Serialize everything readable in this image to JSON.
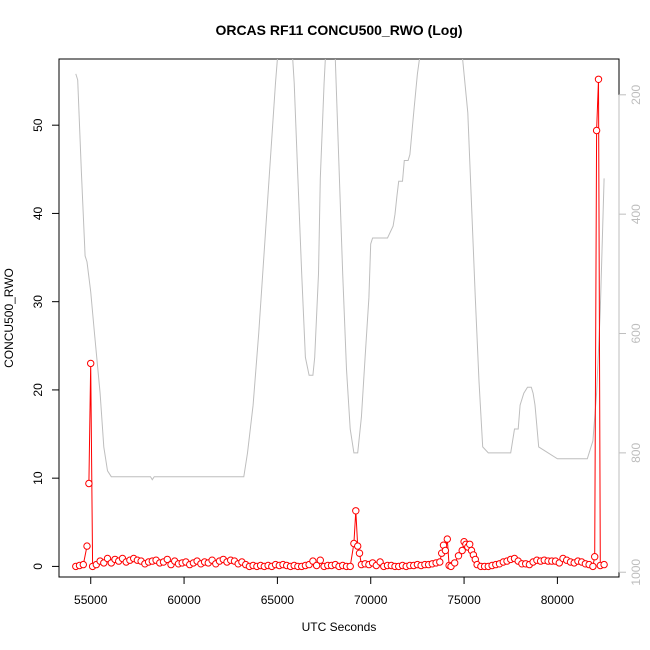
{
  "chart_data": {
    "type": "line",
    "title": "ORCAS RF11 CONCU500_RWO (Log)",
    "xlabel": "UTC Seconds",
    "ylabel": "CONCU500_RWO",
    "xlim": [
      53300,
      83300
    ],
    "ylim": [
      -1.2,
      57.5
    ],
    "x_ticks": [
      55000,
      60000,
      65000,
      70000,
      75000,
      80000
    ],
    "y_ticks": [
      0,
      10,
      20,
      30,
      40,
      50
    ],
    "y2_ticks": [
      200,
      400,
      600,
      800,
      1000
    ],
    "y2lim": [
      1008,
      140
    ],
    "colors": {
      "concentration": "#ff0000",
      "pressure": "#bebebe"
    },
    "series": [
      {
        "role": "concentration",
        "markers": "open-circle",
        "x": [
          54200,
          54400,
          54600,
          54800,
          54900,
          55000,
          55100,
          55300,
          55500,
          55700,
          55900,
          56100,
          56300,
          56500,
          56700,
          56900,
          57100,
          57300,
          57500,
          57700,
          57900,
          58100,
          58300,
          58500,
          58700,
          58900,
          59100,
          59300,
          59500,
          59700,
          59900,
          60100,
          60300,
          60500,
          60700,
          60900,
          61100,
          61300,
          61500,
          61700,
          61900,
          62100,
          62300,
          62500,
          62700,
          62900,
          63100,
          63300,
          63500,
          63700,
          63900,
          64100,
          64300,
          64500,
          64700,
          64900,
          65100,
          65300,
          65500,
          65700,
          65900,
          66100,
          66300,
          66500,
          66700,
          66900,
          67100,
          67300,
          67500,
          67700,
          67900,
          68100,
          68300,
          68500,
          68700,
          68900,
          69100,
          69200,
          69300,
          69400,
          69500,
          69700,
          69900,
          70100,
          70300,
          70500,
          70700,
          70900,
          71100,
          71300,
          71500,
          71700,
          71900,
          72100,
          72300,
          72500,
          72700,
          72900,
          73100,
          73300,
          73500,
          73700,
          73800,
          73900,
          74000,
          74100,
          74200,
          74300,
          74500,
          74700,
          74900,
          75000,
          75100,
          75200,
          75300,
          75400,
          75500,
          75600,
          75700,
          75900,
          76100,
          76300,
          76500,
          76700,
          76900,
          77100,
          77300,
          77500,
          77700,
          77900,
          78100,
          78300,
          78500,
          78700,
          78900,
          79100,
          79300,
          79500,
          79700,
          79900,
          80100,
          80300,
          80500,
          80700,
          80900,
          81100,
          81300,
          81500,
          81700,
          81900,
          82000,
          82100,
          82200,
          82300,
          82500
        ],
        "y": [
          0.0,
          0.1,
          0.2,
          2.3,
          9.4,
          23.0,
          0.0,
          0.2,
          0.6,
          0.4,
          0.9,
          0.4,
          0.8,
          0.6,
          0.9,
          0.5,
          0.7,
          0.9,
          0.7,
          0.6,
          0.3,
          0.5,
          0.6,
          0.7,
          0.4,
          0.5,
          0.8,
          0.2,
          0.6,
          0.3,
          0.4,
          0.5,
          0.2,
          0.4,
          0.6,
          0.3,
          0.5,
          0.4,
          0.7,
          0.3,
          0.6,
          0.8,
          0.5,
          0.7,
          0.6,
          0.3,
          0.5,
          0.2,
          0.0,
          0.1,
          0.0,
          0.1,
          0.0,
          0.1,
          0.0,
          0.2,
          0.1,
          0.2,
          0.1,
          0.0,
          0.1,
          0.0,
          0.0,
          0.1,
          0.2,
          0.6,
          0.1,
          0.7,
          0.0,
          0.1,
          0.1,
          0.2,
          0.0,
          0.1,
          0.0,
          0.0,
          2.6,
          6.3,
          2.3,
          1.5,
          0.2,
          0.3,
          0.2,
          0.4,
          0.1,
          0.5,
          0.0,
          0.1,
          0.1,
          0.0,
          0.0,
          0.1,
          0.0,
          0.1,
          0.1,
          0.2,
          0.1,
          0.2,
          0.2,
          0.3,
          0.4,
          0.5,
          1.5,
          2.4,
          1.8,
          3.1,
          0.1,
          0.0,
          0.4,
          1.2,
          1.8,
          2.8,
          2.5,
          2.2,
          2.5,
          1.8,
          1.3,
          0.8,
          0.2,
          0.0,
          0.0,
          0.0,
          0.1,
          0.2,
          0.3,
          0.5,
          0.6,
          0.8,
          0.9,
          0.6,
          0.3,
          0.3,
          0.2,
          0.5,
          0.7,
          0.6,
          0.7,
          0.6,
          0.6,
          0.6,
          0.4,
          0.9,
          0.7,
          0.5,
          0.4,
          0.6,
          0.5,
          0.3,
          0.2,
          0.0,
          1.1,
          49.4,
          55.2,
          0.1,
          0.2
        ],
        "breaks_after_index": [
          3,
          155
        ]
      },
      {
        "role": "pressure",
        "axis": "right",
        "x": [
          54200,
          54300,
          54500,
          54700,
          54800,
          55000,
          55200,
          55500,
          55700,
          55900,
          56100,
          57000,
          58000,
          58200,
          58300,
          58400,
          59000,
          60000,
          61000,
          62000,
          63000,
          63200,
          63400,
          63700,
          64000,
          64300,
          64600,
          64900,
          65100,
          65300,
          65500,
          65700,
          65900,
          66100,
          66300,
          66500,
          66700,
          66900,
          67000,
          67200,
          67300,
          67500,
          67700,
          67900,
          68100,
          68300,
          68500,
          68700,
          68900,
          69100,
          69300,
          69500,
          69700,
          69900,
          70000,
          70100,
          70300,
          70500,
          70700,
          70900,
          71200,
          71300,
          71400,
          71500,
          71700,
          71800,
          72000,
          72100,
          72300,
          72500,
          72700,
          73000,
          73100,
          73200,
          73300,
          73500,
          73500,
          73700,
          74000,
          74200,
          74300,
          74500,
          74800,
          75200,
          75600,
          75800,
          76000,
          76300,
          76600,
          76900,
          77200,
          77400,
          77500,
          77600,
          77700,
          77900,
          78000,
          78200,
          78400,
          78600,
          78700,
          78800,
          79000,
          80000,
          80500,
          81000,
          81400,
          81600,
          81900,
          82100,
          82300,
          82500
        ],
        "y": [
          165,
          175,
          330,
          470,
          480,
          530,
          600,
          700,
          790,
          830,
          840,
          840,
          840,
          840,
          845,
          840,
          840,
          840,
          840,
          840,
          840,
          840,
          800,
          720,
          600,
          460,
          320,
          180,
          100,
          120,
          80,
          80,
          180,
          340,
          500,
          640,
          670,
          670,
          640,
          500,
          340,
          180,
          60,
          60,
          140,
          320,
          500,
          660,
          760,
          800,
          800,
          740,
          640,
          540,
          450,
          440,
          440,
          440,
          440,
          440,
          420,
          400,
          370,
          345,
          345,
          310,
          310,
          300,
          230,
          165,
          120,
          120,
          128,
          128,
          128,
          128,
          128,
          118,
          128,
          128,
          128,
          128,
          100,
          230,
          540,
          680,
          790,
          800,
          800,
          800,
          800,
          800,
          800,
          780,
          760,
          760,
          720,
          700,
          690,
          690,
          700,
          720,
          790,
          810,
          810,
          810,
          810,
          810,
          780,
          700,
          560,
          340
        ]
      }
    ]
  }
}
